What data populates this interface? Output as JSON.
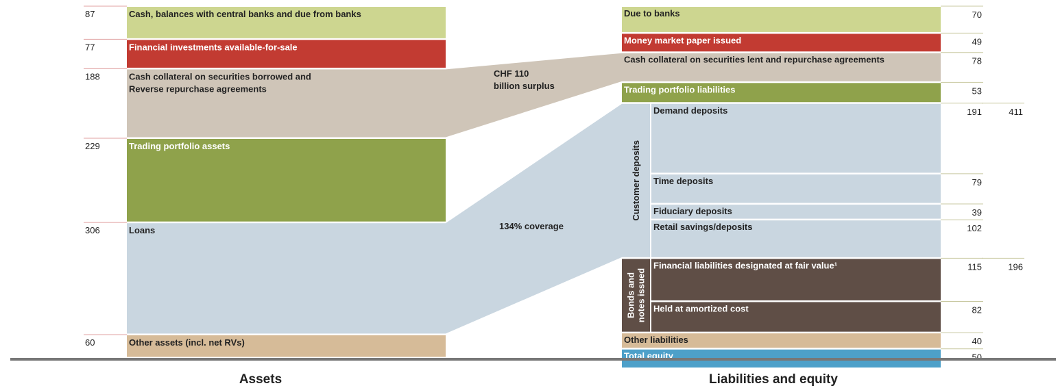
{
  "assets": {
    "title": "Assets",
    "items": [
      {
        "label": [
          "Cash, balances with central banks and due from banks"
        ],
        "value": 87,
        "color": "#cdd690"
      },
      {
        "label": [
          "Financial investments available-for-sale"
        ],
        "value": 77,
        "color": "#c23b32"
      },
      {
        "label": [
          "Cash collateral on securities borrowed and",
          "Reverse repurchase agreements"
        ],
        "value": 188,
        "color": "#cfc5b8"
      },
      {
        "label": [
          "Trading portfolio assets"
        ],
        "value": 229,
        "color": "#8fa24b"
      },
      {
        "label": [
          "Loans"
        ],
        "value": 306,
        "color": "#c9d6e0"
      },
      {
        "label": [
          "Other assets (incl. net RVs)"
        ],
        "value": 60,
        "color": "#d6bb98"
      }
    ]
  },
  "liabilities": {
    "title": "Liabilities and equity",
    "top": [
      {
        "label": [
          "Due to banks"
        ],
        "value": 70,
        "color": "#cdd690"
      },
      {
        "label": [
          "Money market paper issued"
        ],
        "value": 49,
        "color": "#c23b32"
      },
      {
        "label": [
          "Cash collateral on securities lent and repurchase agreements"
        ],
        "value": 78,
        "color": "#cfc5b8"
      },
      {
        "label": [
          "Trading portfolio liabilities"
        ],
        "value": 53,
        "color": "#8fa24b"
      }
    ],
    "groups": [
      {
        "label": [
          "Customer deposits"
        ],
        "total": 411,
        "color": "#c9d6e0",
        "items": [
          {
            "label": [
              "Demand deposits"
            ],
            "value": 191
          },
          {
            "label": [
              "Time deposits"
            ],
            "value": 79
          },
          {
            "label": [
              "Fiduciary deposits"
            ],
            "value": 39
          },
          {
            "label": [
              "Retail savings/deposits"
            ],
            "value": 102
          }
        ]
      },
      {
        "label": [
          "Bonds and",
          "notes issued"
        ],
        "total": 196,
        "color": "#5f4e46",
        "items": [
          {
            "label": [
              "Financial liabilities designated at fair value¹"
            ],
            "value": 115
          },
          {
            "label": [
              "Held at amortized cost"
            ],
            "value": 82
          }
        ]
      }
    ],
    "bottom": [
      {
        "label": [
          "Other liabilities"
        ],
        "value": 40,
        "color": "#d6bb98"
      },
      {
        "label": [
          "Total equity"
        ],
        "value": 50,
        "color": "#4da0c9"
      }
    ]
  },
  "connectors": [
    {
      "label": [
        "CHF 110",
        "billion surplus"
      ],
      "color": "#cfc5b8"
    },
    {
      "label": [
        "134% coverage"
      ],
      "color": "#c9d6e0"
    }
  ]
}
